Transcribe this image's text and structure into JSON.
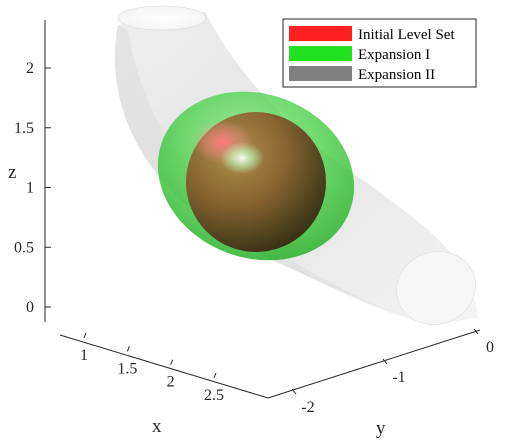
{
  "chart_data": {
    "type": "3d-surface",
    "title": "",
    "axes": {
      "x": {
        "label": "x",
        "ticks": [
          "1",
          "1.5",
          "2",
          "2.5"
        ],
        "range": [
          1,
          2.5
        ]
      },
      "y": {
        "label": "y",
        "ticks": [
          "0",
          "-1",
          "-2"
        ],
        "range": [
          -2,
          0
        ]
      },
      "z": {
        "label": "z",
        "ticks": [
          "0",
          "0.5",
          "1",
          "1.5",
          "2"
        ],
        "range": [
          0,
          2
        ]
      }
    },
    "legend": {
      "placement": "top-right",
      "entries": [
        {
          "label": "Initial Level Set",
          "color": "#ff2020"
        },
        {
          "label": "Expansion I",
          "color": "#20e020"
        },
        {
          "label": "Expansion II",
          "color": "#808080"
        }
      ]
    },
    "series": [
      {
        "name": "Initial Level Set",
        "color": "#ff2020"
      },
      {
        "name": "Expansion I",
        "color": "#20e020"
      },
      {
        "name": "Expansion II",
        "color": "#808080"
      }
    ],
    "surface_color": "#e6e6e6",
    "grid": false
  }
}
